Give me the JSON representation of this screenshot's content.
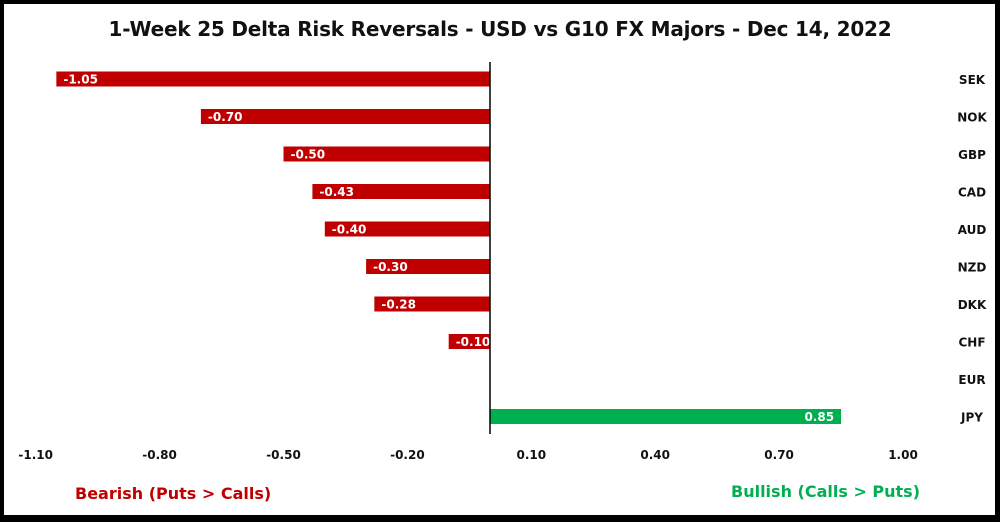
{
  "chart_data": {
    "type": "bar",
    "orientation": "horizontal",
    "title": "1-Week 25 Delta Risk Reversals - USD vs G10 FX Majors - Dec 14, 2022",
    "categories": [
      "SEK",
      "NOK",
      "GBP",
      "CAD",
      "AUD",
      "NZD",
      "DKK",
      "CHF",
      "EUR",
      "JPY"
    ],
    "values": [
      -1.05,
      -0.7,
      -0.5,
      -0.43,
      -0.4,
      -0.3,
      -0.28,
      -0.1,
      0.0,
      0.85
    ],
    "data_labels": [
      "-1.05",
      "-0.70",
      "-0.50",
      "-0.43",
      "-0.40",
      "-0.30",
      "-0.28",
      "-0.10",
      "",
      "0.85"
    ],
    "xlim": [
      -1.1,
      1.0
    ],
    "x_ticks": [
      -1.1,
      -0.8,
      -0.5,
      -0.2,
      0.1,
      0.4,
      0.7,
      1.0
    ],
    "x_tick_labels": [
      "-1.10",
      "-0.80",
      "-0.50",
      "-0.20",
      "0.10",
      "0.40",
      "0.70",
      "1.00"
    ],
    "xlabel": "",
    "ylabel": "",
    "category_labels_side": "right",
    "grid": false,
    "legend": null,
    "colors": {
      "negative": "#C00000",
      "positive": "#00B050"
    },
    "annotations": [
      {
        "text": "Bearish (Puts > Calls)",
        "color": "#C00000",
        "position": "bottom-left"
      },
      {
        "text": "Bullish (Calls > Puts)",
        "color": "#00B050",
        "position": "bottom-right"
      }
    ]
  }
}
